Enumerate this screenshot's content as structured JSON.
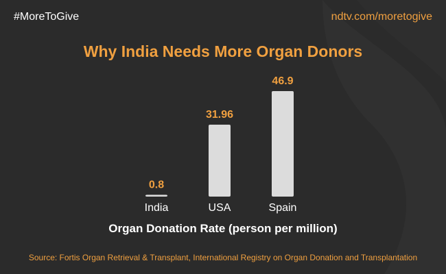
{
  "header": {
    "hashtag": "#MoreToGive",
    "url": "ndtv.com/moretogive"
  },
  "footer": {
    "source": "Source: Fortis Organ Retrieval & Transplant, International Registry on Organ Donation and Transplantation"
  },
  "colors": {
    "background": "#2b2b2b",
    "accent": "#f0a040",
    "bar": "#dcdcdc",
    "text": "#ffffff"
  },
  "chart_data": {
    "type": "bar",
    "title": "Why India Needs More Organ Donors",
    "xlabel": "Organ Donation Rate (person per million)",
    "ylabel": "",
    "categories": [
      "India",
      "USA",
      "Spain"
    ],
    "values": [
      0.8,
      31.96,
      46.9
    ],
    "value_labels": [
      "0.8",
      "31.96",
      "46.9"
    ],
    "ylim": [
      0,
      46.9
    ],
    "grid": false,
    "legend": "none"
  }
}
